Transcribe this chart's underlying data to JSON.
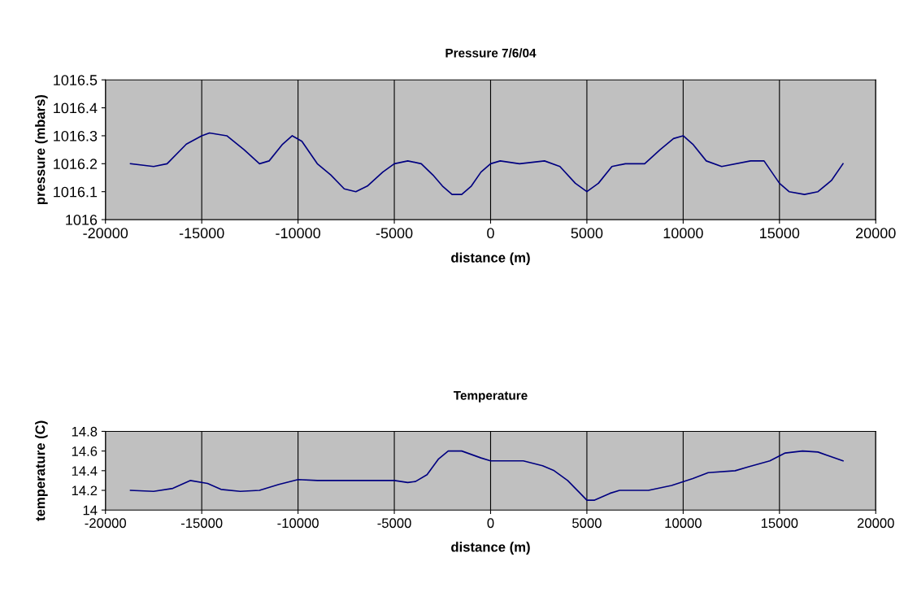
{
  "chart_data": [
    {
      "type": "line",
      "title": "Pressure 7/6/04",
      "xlabel": "distance (m)",
      "ylabel": "pressure (mbars)",
      "grid": "x",
      "legend": false,
      "xlim": [
        -20000,
        20000
      ],
      "xticks": [
        -20000,
        -15000,
        -10000,
        -5000,
        0,
        5000,
        10000,
        15000,
        20000
      ],
      "ylim": [
        1016,
        1016.5
      ],
      "yticks": [
        1016,
        1016.1,
        1016.2,
        1016.3,
        1016.4,
        1016.5
      ],
      "series": [
        {
          "color": "#000080",
          "x": [
            -18700,
            -17500,
            -16800,
            -15800,
            -15000,
            -14600,
            -13700,
            -12800,
            -12000,
            -11500,
            -10800,
            -10300,
            -9800,
            -9000,
            -8300,
            -7600,
            -7000,
            -6400,
            -5600,
            -5000,
            -4300,
            -3600,
            -3000,
            -2500,
            -2000,
            -1500,
            -1000,
            -500,
            0,
            500,
            1500,
            2800,
            3600,
            4400,
            5000,
            5600,
            6300,
            7000,
            8000,
            8800,
            9500,
            10000,
            10500,
            11200,
            12000,
            13500,
            14200,
            15000,
            15500,
            16300,
            17000,
            17700,
            18300
          ],
          "values": [
            1016.2,
            1016.19,
            1016.2,
            1016.27,
            1016.3,
            1016.31,
            1016.3,
            1016.25,
            1016.2,
            1016.21,
            1016.27,
            1016.3,
            1016.28,
            1016.2,
            1016.16,
            1016.11,
            1016.1,
            1016.12,
            1016.17,
            1016.2,
            1016.21,
            1016.2,
            1016.16,
            1016.12,
            1016.09,
            1016.09,
            1016.12,
            1016.17,
            1016.2,
            1016.21,
            1016.2,
            1016.21,
            1016.19,
            1016.13,
            1016.1,
            1016.13,
            1016.19,
            1016.2,
            1016.2,
            1016.25,
            1016.29,
            1016.3,
            1016.27,
            1016.21,
            1016.19,
            1016.21,
            1016.21,
            1016.13,
            1016.1,
            1016.09,
            1016.1,
            1016.14,
            1016.2
          ]
        }
      ]
    },
    {
      "type": "line",
      "title": "Temperature",
      "xlabel": "distance (m)",
      "ylabel": "temperature (C)",
      "grid": "x",
      "legend": false,
      "xlim": [
        -20000,
        20000
      ],
      "xticks": [
        -20000,
        -15000,
        -10000,
        -5000,
        0,
        5000,
        10000,
        15000,
        20000
      ],
      "ylim": [
        14,
        14.8
      ],
      "yticks": [
        14,
        14.2,
        14.4,
        14.6,
        14.8
      ],
      "series": [
        {
          "color": "#000080",
          "x": [
            -18700,
            -17500,
            -16500,
            -15600,
            -14700,
            -14000,
            -13000,
            -12000,
            -11000,
            -10000,
            -9000,
            -5000,
            -4300,
            -3900,
            -3300,
            -2700,
            -2200,
            -1500,
            -500,
            0,
            1700,
            2700,
            3300,
            4000,
            4600,
            5000,
            5400,
            6200,
            6700,
            8200,
            9400,
            10500,
            11300,
            12700,
            13400,
            14500,
            15300,
            16200,
            17000,
            18300
          ],
          "values": [
            14.2,
            14.19,
            14.22,
            14.3,
            14.27,
            14.21,
            14.19,
            14.2,
            14.26,
            14.31,
            14.3,
            14.3,
            14.28,
            14.29,
            14.36,
            14.52,
            14.6,
            14.6,
            14.53,
            14.5,
            14.5,
            14.45,
            14.4,
            14.3,
            14.18,
            14.1,
            14.1,
            14.17,
            14.2,
            14.2,
            14.25,
            14.32,
            14.38,
            14.4,
            14.44,
            14.5,
            14.58,
            14.6,
            14.59,
            14.5
          ]
        }
      ]
    }
  ]
}
